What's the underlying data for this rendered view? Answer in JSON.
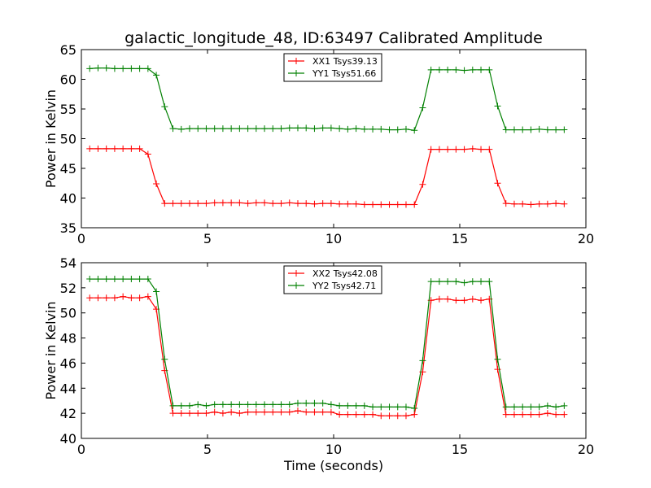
{
  "title": "galactic_longitude_48, ID:63497 Calibrated Amplitude",
  "colors": {
    "red": "#ff0000",
    "green": "#008000",
    "frame": "#000000",
    "background": "#ffffff"
  },
  "chart_data": [
    {
      "type": "line",
      "ylabel": "Power in Kelvin",
      "xlabel": "",
      "xlim": [
        0,
        20
      ],
      "ylim": [
        35,
        65
      ],
      "xticks": [
        "0",
        "5",
        "10",
        "15",
        "20"
      ],
      "yticks": [
        "35",
        "40",
        "45",
        "50",
        "55",
        "60",
        "65"
      ],
      "xtick_values": [
        0,
        5,
        10,
        15,
        20
      ],
      "ytick_values": [
        35,
        40,
        45,
        50,
        55,
        60,
        65
      ],
      "legend_position": "top-center",
      "marker": "+",
      "x": [
        0.33,
        0.66,
        0.99,
        1.32,
        1.65,
        1.98,
        2.31,
        2.64,
        2.97,
        3.3,
        3.63,
        3.96,
        4.29,
        4.62,
        4.95,
        5.28,
        5.61,
        5.94,
        6.27,
        6.6,
        6.93,
        7.26,
        7.59,
        7.92,
        8.25,
        8.58,
        8.91,
        9.24,
        9.57,
        9.9,
        10.23,
        10.56,
        10.89,
        11.22,
        11.55,
        11.88,
        12.21,
        12.54,
        12.87,
        13.2,
        13.53,
        13.86,
        14.19,
        14.52,
        14.85,
        15.18,
        15.51,
        15.84,
        16.17,
        16.5,
        16.83,
        17.16,
        17.49,
        17.82,
        18.15,
        18.48,
        18.81,
        19.14
      ],
      "series": [
        {
          "name": "XX1 Tsys39.13",
          "color": "#ff0000",
          "values": [
            48.3,
            48.3,
            48.3,
            48.3,
            48.3,
            48.3,
            48.3,
            47.4,
            42.4,
            39.1,
            39.1,
            39.1,
            39.1,
            39.1,
            39.1,
            39.2,
            39.2,
            39.2,
            39.2,
            39.1,
            39.2,
            39.2,
            39.1,
            39.1,
            39.2,
            39.1,
            39.1,
            39.0,
            39.1,
            39.1,
            39.0,
            39.0,
            39.0,
            38.9,
            38.9,
            38.9,
            38.9,
            38.9,
            38.9,
            38.9,
            42.3,
            48.2,
            48.2,
            48.2,
            48.2,
            48.2,
            48.3,
            48.2,
            48.2,
            42.5,
            39.1,
            39.0,
            39.0,
            38.9,
            39.0,
            39.0,
            39.1,
            39.0
          ]
        },
        {
          "name": "YY1 Tsys51.66",
          "color": "#008000",
          "values": [
            61.8,
            61.9,
            61.9,
            61.8,
            61.8,
            61.8,
            61.8,
            61.8,
            60.7,
            55.4,
            51.7,
            51.6,
            51.7,
            51.7,
            51.7,
            51.7,
            51.7,
            51.7,
            51.7,
            51.7,
            51.7,
            51.7,
            51.7,
            51.7,
            51.8,
            51.8,
            51.8,
            51.7,
            51.8,
            51.8,
            51.7,
            51.6,
            51.7,
            51.6,
            51.6,
            51.6,
            51.5,
            51.5,
            51.6,
            51.4,
            55.2,
            61.6,
            61.6,
            61.6,
            61.6,
            61.5,
            61.6,
            61.6,
            61.6,
            55.5,
            51.5,
            51.5,
            51.5,
            51.5,
            51.6,
            51.5,
            51.5,
            51.5
          ]
        }
      ]
    },
    {
      "type": "line",
      "ylabel": "Power in Kelvin",
      "xlabel": "Time (seconds)",
      "xlim": [
        0,
        20
      ],
      "ylim": [
        40,
        54
      ],
      "xticks": [
        "0",
        "5",
        "10",
        "15",
        "20"
      ],
      "yticks": [
        "40",
        "42",
        "44",
        "46",
        "48",
        "50",
        "52",
        "54"
      ],
      "xtick_values": [
        0,
        5,
        10,
        15,
        20
      ],
      "ytick_values": [
        40,
        42,
        44,
        46,
        48,
        50,
        52,
        54
      ],
      "legend_position": "top-center",
      "marker": "+",
      "x": [
        0.33,
        0.66,
        0.99,
        1.32,
        1.65,
        1.98,
        2.31,
        2.64,
        2.97,
        3.3,
        3.63,
        3.96,
        4.29,
        4.62,
        4.95,
        5.28,
        5.61,
        5.94,
        6.27,
        6.6,
        6.93,
        7.26,
        7.59,
        7.92,
        8.25,
        8.58,
        8.91,
        9.24,
        9.57,
        9.9,
        10.23,
        10.56,
        10.89,
        11.22,
        11.55,
        11.88,
        12.21,
        12.54,
        12.87,
        13.2,
        13.53,
        13.86,
        14.19,
        14.52,
        14.85,
        15.18,
        15.51,
        15.84,
        16.17,
        16.5,
        16.83,
        17.16,
        17.49,
        17.82,
        18.15,
        18.48,
        18.81,
        19.14
      ],
      "series": [
        {
          "name": "XX2 Tsys42.08",
          "color": "#ff0000",
          "values": [
            51.2,
            51.2,
            51.2,
            51.2,
            51.3,
            51.2,
            51.2,
            51.3,
            50.3,
            45.4,
            42.0,
            42.0,
            42.0,
            42.0,
            42.0,
            42.1,
            42.0,
            42.1,
            42.0,
            42.1,
            42.1,
            42.1,
            42.1,
            42.1,
            42.1,
            42.2,
            42.1,
            42.1,
            42.1,
            42.1,
            41.9,
            41.9,
            41.9,
            41.9,
            41.9,
            41.8,
            41.8,
            41.8,
            41.8,
            41.9,
            45.3,
            51.0,
            51.1,
            51.1,
            51.0,
            51.0,
            51.1,
            51.0,
            51.1,
            45.5,
            41.9,
            41.9,
            41.9,
            41.9,
            41.9,
            42.0,
            41.9,
            41.9
          ]
        },
        {
          "name": "YY2 Tsys42.71",
          "color": "#008000",
          "values": [
            52.7,
            52.7,
            52.7,
            52.7,
            52.7,
            52.7,
            52.7,
            52.7,
            51.7,
            46.3,
            42.6,
            42.6,
            42.6,
            42.7,
            42.6,
            42.7,
            42.7,
            42.7,
            42.7,
            42.7,
            42.7,
            42.7,
            42.7,
            42.7,
            42.7,
            42.8,
            42.8,
            42.8,
            42.8,
            42.7,
            42.6,
            42.6,
            42.6,
            42.6,
            42.5,
            42.5,
            42.5,
            42.5,
            42.5,
            42.4,
            46.2,
            52.5,
            52.5,
            52.5,
            52.5,
            52.4,
            52.5,
            52.5,
            52.5,
            46.3,
            42.5,
            42.5,
            42.5,
            42.5,
            42.5,
            42.6,
            42.5,
            42.6
          ]
        }
      ]
    }
  ]
}
